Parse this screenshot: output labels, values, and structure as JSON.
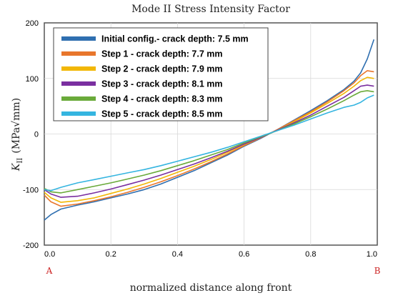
{
  "chart_data": {
    "type": "line",
    "title": "Mode II Stress Intensity Factor",
    "xlabel": "normalized distance along front",
    "ylabel": "K_II (MPa√mm)",
    "ylabel_base": "K",
    "ylabel_sub": "II",
    "ylabel_units": "(MPa√mm)",
    "xlim": [
      0,
      1
    ],
    "ylim": [
      -200,
      200
    ],
    "xticks": [
      "0.0",
      "0.2",
      "0.4",
      "0.6",
      "0.8",
      "1.0"
    ],
    "yticks": [
      "200",
      "100",
      "0",
      "-100",
      "-200"
    ],
    "grid": true,
    "legend_position": "top-left",
    "end_labels": {
      "start": "A",
      "end": "B"
    },
    "x": [
      0.0,
      0.02,
      0.05,
      0.1,
      0.15,
      0.2,
      0.25,
      0.3,
      0.35,
      0.4,
      0.45,
      0.5,
      0.55,
      0.6,
      0.65,
      0.7,
      0.75,
      0.8,
      0.85,
      0.9,
      0.93,
      0.95,
      0.97,
      0.99
    ],
    "series": [
      {
        "name": "Initial config.- crack depth: 7.5 mm",
        "color": "#2f6fb0",
        "values": [
          -155,
          -145,
          -135,
          -128,
          -122,
          -115,
          -108,
          -100,
          -90,
          -78,
          -66,
          -52,
          -38,
          -22,
          -8,
          8,
          25,
          42,
          60,
          80,
          95,
          110,
          135,
          170
        ]
      },
      {
        "name": "Step 1 - crack depth: 7.7 mm",
        "color": "#e8762c",
        "values": [
          -110,
          -122,
          -130,
          -126,
          -120,
          -113,
          -105,
          -96,
          -86,
          -75,
          -63,
          -50,
          -36,
          -21,
          -7,
          8,
          24,
          40,
          58,
          78,
          92,
          105,
          114,
          112
        ]
      },
      {
        "name": "Step 2 - crack depth: 7.9 mm",
        "color": "#f2b705",
        "values": [
          -105,
          -115,
          -123,
          -120,
          -115,
          -107,
          -99,
          -90,
          -80,
          -69,
          -58,
          -46,
          -33,
          -19,
          -6,
          7,
          22,
          38,
          55,
          73,
          86,
          96,
          102,
          100
        ]
      },
      {
        "name": "Step 3 - crack depth: 8.1 mm",
        "color": "#7a2fa0",
        "values": [
          -100,
          -108,
          -114,
          -112,
          -106,
          -99,
          -91,
          -83,
          -74,
          -64,
          -54,
          -43,
          -31,
          -18,
          -6,
          7,
          20,
          34,
          50,
          66,
          78,
          86,
          88,
          86
        ]
      },
      {
        "name": "Step 4 - crack depth: 8.3 mm",
        "color": "#6aaa3a",
        "values": [
          -98,
          -104,
          -106,
          -100,
          -94,
          -88,
          -81,
          -74,
          -66,
          -57,
          -48,
          -38,
          -28,
          -16,
          -5,
          6,
          18,
          31,
          45,
          60,
          70,
          76,
          78,
          76
        ]
      },
      {
        "name": "Step 5 - crack depth: 8.5 mm",
        "color": "#35b5e0",
        "values": [
          -100,
          -102,
          -96,
          -88,
          -82,
          -76,
          -70,
          -64,
          -57,
          -49,
          -41,
          -33,
          -24,
          -14,
          -4,
          6,
          16,
          27,
          38,
          48,
          52,
          57,
          65,
          70
        ]
      }
    ]
  }
}
